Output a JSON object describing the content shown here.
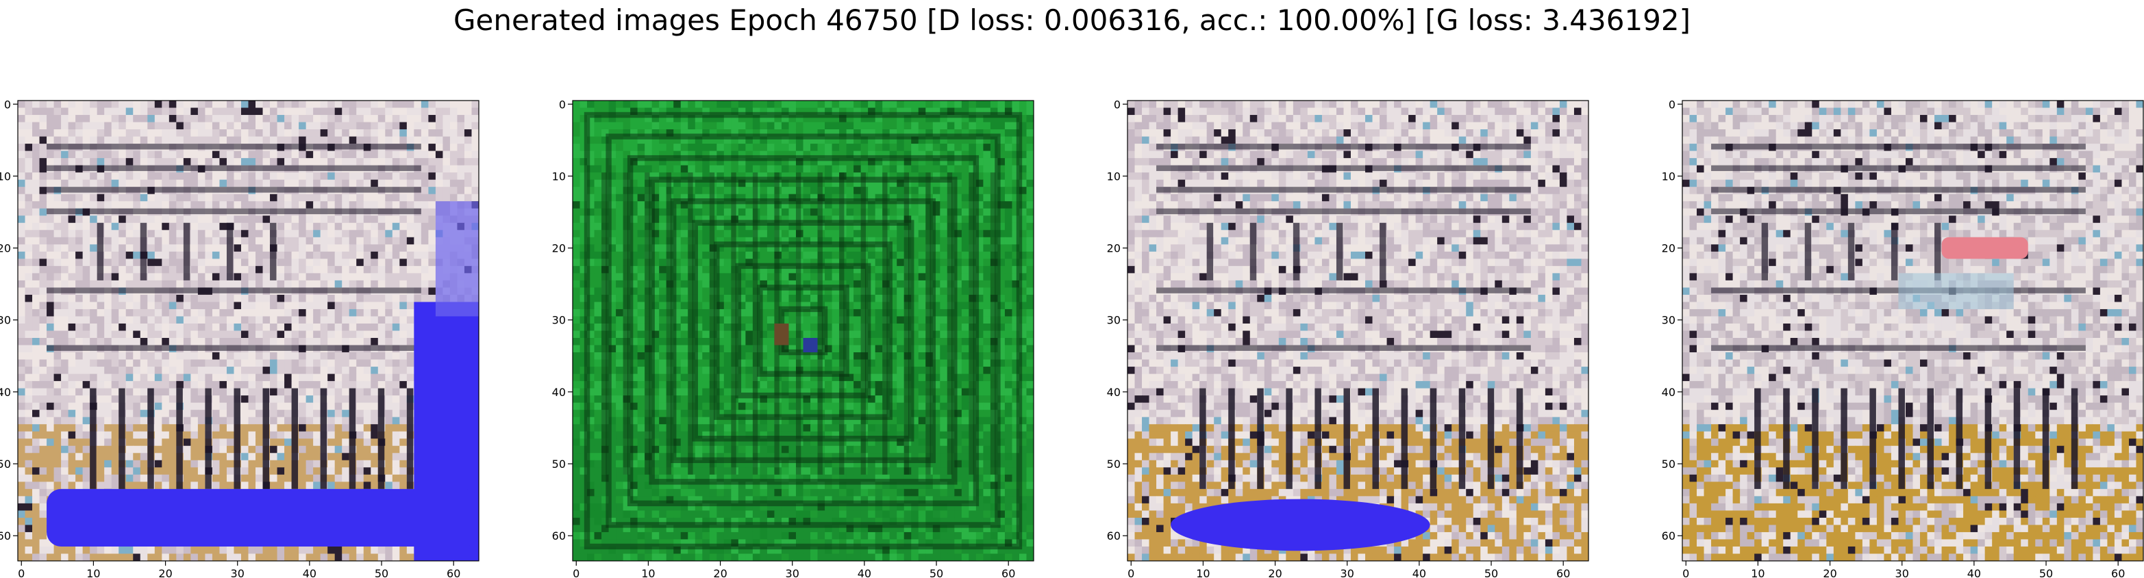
{
  "title": "Generated images Epoch 46750 [D loss: 0.006316, acc.: 100.00%] [G loss: 3.436192]",
  "panels": [
    {
      "id": "sample-1",
      "tick_labels": [
        "0",
        "10",
        "20",
        "30",
        "40",
        "50",
        "60"
      ],
      "base_colors": [
        "#e9e1e3",
        "#d9cdd4",
        "#c9bbc6",
        "#efe6e4"
      ],
      "bottom_tint": "#caa46a",
      "overlay": "blue-L",
      "overlay_color": "#3a2ef2"
    },
    {
      "id": "sample-2",
      "tick_labels": [
        "0",
        "10",
        "20",
        "30",
        "40",
        "50",
        "60"
      ],
      "base_colors": [
        "#22a83a",
        "#1e9a32",
        "#2bb445",
        "#168a2c"
      ],
      "bottom_tint": "#1a8f30",
      "overlay": "green-squares",
      "overlay_color": "#0b3a12"
    },
    {
      "id": "sample-3",
      "tick_labels": [
        "0",
        "10",
        "20",
        "30",
        "40",
        "50",
        "60"
      ],
      "base_colors": [
        "#e8e0e2",
        "#d6cad1",
        "#c6b8c4",
        "#eee6e3"
      ],
      "bottom_tint": "#c99c4a",
      "overlay": "blue-blob",
      "overlay_color": "#3b2cf0"
    },
    {
      "id": "sample-4",
      "tick_labels": [
        "0",
        "10",
        "20",
        "30",
        "40",
        "50",
        "60"
      ],
      "base_colors": [
        "#e6dfe2",
        "#d4c9cf",
        "#c3b7c1",
        "#ece4e2"
      ],
      "bottom_tint": "#c69a3a",
      "overlay": "pink-patch",
      "overlay_color": "#e8828e"
    }
  ]
}
